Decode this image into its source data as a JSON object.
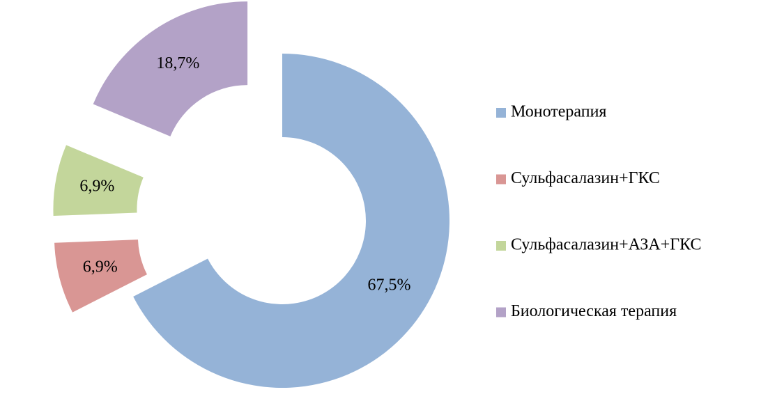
{
  "chart_data": {
    "type": "doughnut",
    "categories": [
      "Монотерапия",
      "Сульфасалазин+ГКС",
      "Сульфасалазин+АЗА+ГКС",
      "Биологическая терапия"
    ],
    "values": [
      67.5,
      6.9,
      6.9,
      18.7
    ],
    "value_labels": [
      "67,5%",
      "6,9%",
      "6,9%",
      "18,7%"
    ],
    "colors": [
      "#95b3d7",
      "#d99694",
      "#c3d69b",
      "#b3a2c7"
    ],
    "exploded": [
      false,
      true,
      true,
      true
    ],
    "legend": "right"
  }
}
